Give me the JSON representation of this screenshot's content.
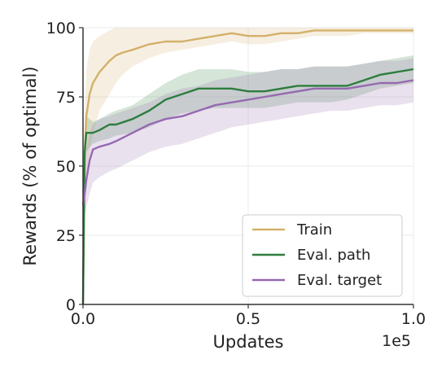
{
  "chart_data": {
    "type": "line",
    "xlabel": "Updates",
    "ylabel": "Rewards (% of optimal)",
    "x_offset_label": "1e5",
    "xlim": [
      0,
      1.0
    ],
    "ylim": [
      0,
      100
    ],
    "xticks": [
      0.0,
      0.5,
      1.0
    ],
    "xtick_labels": [
      "0.0",
      "0.5",
      "1.0"
    ],
    "yticks": [
      0,
      25,
      50,
      75,
      100
    ],
    "ytick_labels": [
      "0",
      "25",
      "50",
      "75",
      "100"
    ],
    "grid": true,
    "legend_position": "lower-right",
    "series": [
      {
        "name": "Train",
        "color": "#d4b06a",
        "x": [
          0.0,
          0.005,
          0.01,
          0.02,
          0.03,
          0.05,
          0.08,
          0.1,
          0.12,
          0.15,
          0.2,
          0.25,
          0.3,
          0.35,
          0.4,
          0.45,
          0.5,
          0.55,
          0.6,
          0.65,
          0.7,
          0.75,
          0.8,
          0.85,
          0.9,
          0.95,
          1.0
        ],
        "y": [
          0,
          55,
          68,
          76,
          80,
          84,
          88,
          90,
          91,
          92,
          94,
          95,
          95,
          96,
          97,
          98,
          97,
          97,
          98,
          98,
          99,
          99,
          99,
          99,
          99,
          99,
          99
        ],
        "lower": [
          0,
          30,
          45,
          55,
          62,
          70,
          76,
          80,
          83,
          86,
          89,
          91,
          92,
          93,
          94,
          95,
          94,
          94,
          95,
          96,
          97,
          97,
          97,
          98,
          98,
          98,
          98
        ],
        "upper": [
          0,
          70,
          85,
          92,
          95,
          97,
          99,
          100,
          100,
          100,
          100,
          100,
          100,
          100,
          100,
          100,
          100,
          100,
          100,
          100,
          100,
          100,
          100,
          100,
          100,
          100,
          100
        ]
      },
      {
        "name": "Eval. path",
        "color": "#2e7d3e",
        "x": [
          0.0,
          0.005,
          0.01,
          0.02,
          0.03,
          0.05,
          0.08,
          0.1,
          0.15,
          0.2,
          0.25,
          0.3,
          0.35,
          0.4,
          0.45,
          0.5,
          0.55,
          0.6,
          0.65,
          0.7,
          0.75,
          0.8,
          0.85,
          0.9,
          0.95,
          1.0
        ],
        "y": [
          0,
          55,
          62,
          62,
          62,
          63,
          65,
          65,
          67,
          70,
          74,
          76,
          78,
          78,
          78,
          77,
          77,
          78,
          79,
          79,
          79,
          79,
          81,
          83,
          84,
          85
        ],
        "lower": [
          0,
          48,
          55,
          57,
          58,
          59,
          60,
          61,
          62,
          64,
          67,
          69,
          70,
          71,
          71,
          71,
          71,
          72,
          73,
          73,
          73,
          74,
          76,
          78,
          79,
          80
        ],
        "upper": [
          0,
          62,
          68,
          67,
          66,
          67,
          69,
          70,
          72,
          76,
          80,
          83,
          85,
          85,
          85,
          84,
          84,
          85,
          85,
          86,
          86,
          86,
          87,
          88,
          89,
          90
        ]
      },
      {
        "name": "Eval. target",
        "color": "#9569b0",
        "x": [
          0.0,
          0.005,
          0.01,
          0.02,
          0.03,
          0.05,
          0.08,
          0.1,
          0.15,
          0.2,
          0.25,
          0.3,
          0.35,
          0.4,
          0.45,
          0.5,
          0.55,
          0.6,
          0.65,
          0.7,
          0.75,
          0.8,
          0.85,
          0.9,
          0.95,
          1.0
        ],
        "y": [
          36,
          40,
          45,
          52,
          56,
          57,
          58,
          59,
          62,
          65,
          67,
          68,
          70,
          72,
          73,
          74,
          75,
          76,
          77,
          78,
          78,
          78,
          79,
          80,
          80,
          81
        ],
        "lower": [
          28,
          32,
          35,
          40,
          44,
          46,
          48,
          49,
          52,
          55,
          57,
          58,
          60,
          62,
          64,
          65,
          66,
          67,
          68,
          69,
          70,
          70,
          71,
          72,
          72,
          73
        ],
        "upper": [
          44,
          50,
          56,
          62,
          65,
          67,
          68,
          69,
          71,
          73,
          76,
          78,
          79,
          81,
          82,
          83,
          84,
          85,
          85,
          86,
          86,
          86,
          87,
          88,
          88,
          89
        ]
      }
    ]
  }
}
